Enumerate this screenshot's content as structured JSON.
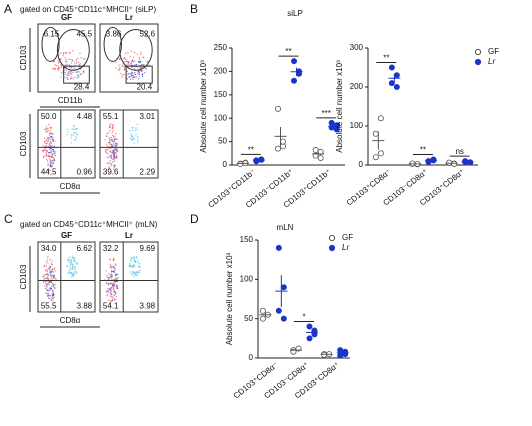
{
  "panel_labels": [
    "A",
    "B",
    "C",
    "D"
  ],
  "flow": [
    {
      "gate": "gated on CD45⁺CD11c⁺MHCII⁺  (siLP)",
      "rows": [
        {
          "groups": [
            "GF",
            "Lr"
          ],
          "ylabel": "CD103",
          "xlabel": "CD11b",
          "plots": [
            [
              "6.15",
              "45.5",
              "28.4"
            ],
            [
              "3.86",
              "52.6",
              "20.4"
            ]
          ]
        },
        {
          "ylabel": "CD103",
          "xlabel": "CD8α",
          "plots": [
            [
              "50.0",
              "4.48",
              "44.5",
              "0.96"
            ],
            [
              "55.1",
              "3.01",
              "39.6",
              "2.29"
            ]
          ]
        }
      ]
    },
    {
      "gate": "gated on CD45⁺CD11c⁺MHCII⁺  (mLN)",
      "rows": [
        {
          "groups": [
            "GF",
            "Lr"
          ],
          "ylabel": "CD103",
          "xlabel": "CD8α",
          "plots": [
            [
              "34.0",
              "6.62",
              "55.5",
              "3.88"
            ],
            [
              "32.2",
              "9.69",
              "54.1",
              "3.98"
            ]
          ]
        }
      ]
    }
  ],
  "chart_data": [
    {
      "type": "dot",
      "title": "siLP",
      "ylabel": "Absolute cell number x10³",
      "categories": [
        "CD103⁺CD11b⁻",
        "CD103⁻CD11b⁺",
        "CD103⁺CD11b⁺"
      ],
      "series": [
        {
          "name": "GF",
          "color": "#555555",
          "values": [
            [
              3,
              5,
              2,
              4
            ],
            [
              120,
              40,
              35,
              50
            ],
            [
              20,
              28,
              32,
              15
            ]
          ]
        },
        {
          "name": "Lr",
          "color": "#1a35c8",
          "values": [
            [
              8,
              12,
              10,
              11
            ],
            [
              180,
              200,
              222,
              195
            ],
            [
              80,
              85,
              90,
              76
            ]
          ]
        }
      ],
      "annotations": [
        "**",
        "**",
        "***"
      ],
      "ylim": [
        0,
        250
      ],
      "yticks": [
        0,
        50,
        100,
        150,
        200,
        250
      ],
      "legend": false
    },
    {
      "type": "dot",
      "ylabel": "Absolute cell number x10³",
      "categories": [
        "CD103⁺CD8α⁻",
        "CD103⁻CD8α⁺",
        "CD103⁺CD8α⁺"
      ],
      "series": [
        {
          "name": "GF",
          "color": "#555555",
          "values": [
            [
              20,
              30,
              80,
              120
            ],
            [
              3,
              2,
              4,
              3
            ],
            [
              5,
              4,
              6,
              3
            ]
          ]
        },
        {
          "name": "Lr",
          "color": "#1a35c8",
          "values": [
            [
              250,
              230,
              210,
              200
            ],
            [
              10,
              12,
              8,
              14
            ],
            [
              8,
              6,
              10,
              7
            ]
          ]
        }
      ],
      "annotations": [
        "**",
        "**",
        "ns"
      ],
      "ylim": [
        0,
        300
      ],
      "yticks": [
        0,
        100,
        200,
        300
      ],
      "legend": true
    },
    {
      "type": "dot",
      "title": "mLN",
      "ylabel": "Absolute cell number x10³",
      "categories": [
        "CD103⁺CD8α⁻",
        "CD103⁻CD8α⁺",
        "CD103⁺CD8α⁺"
      ],
      "series": [
        {
          "name": "GF",
          "color": "#555555",
          "values": [
            [
              60,
              55,
              50
            ],
            [
              10,
              12,
              8
            ],
            [
              5,
              5,
              4
            ]
          ]
        },
        {
          "name": "Lr",
          "color": "#1a35c8",
          "values": [
            [
              140,
              90,
              60,
              50
            ],
            [
              40,
              30,
              25,
              35
            ],
            [
              10,
              5,
              3,
              8
            ]
          ]
        }
      ],
      "annotations": [
        "",
        "*",
        ""
      ],
      "ylim": [
        0,
        150
      ],
      "yticks": [
        0,
        50,
        100,
        150
      ],
      "legend": true
    }
  ]
}
